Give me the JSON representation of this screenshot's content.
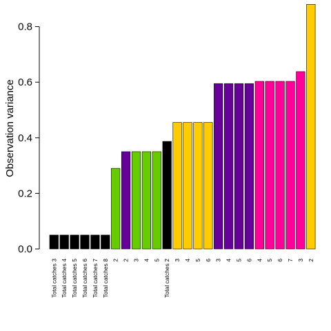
{
  "chart_data": {
    "type": "bar",
    "ylabel": "Observation variance",
    "xlabel": "",
    "title": "",
    "ylim": [
      0,
      0.88
    ],
    "yticks": [
      0.0,
      0.2,
      0.4,
      0.6,
      0.8
    ],
    "ytick_labels": [
      "0.0",
      "0.2",
      "0.4",
      "0.6",
      "0.8"
    ],
    "grid": false,
    "categories": [
      "Total catches 3",
      "Total catches 4",
      "Total catches 5",
      "Total catches 6",
      "Total catches 7",
      "Total catches 8",
      "2",
      "2",
      "3",
      "4",
      "5",
      "Total catches 2",
      "3",
      "4",
      "5",
      "6",
      "3",
      "4",
      "5",
      "6",
      "4",
      "5",
      "6",
      "7",
      "3",
      "2"
    ],
    "values": [
      0.05,
      0.05,
      0.05,
      0.05,
      0.05,
      0.05,
      0.29,
      0.35,
      0.35,
      0.35,
      0.35,
      0.387,
      0.455,
      0.455,
      0.455,
      0.455,
      0.595,
      0.595,
      0.595,
      0.595,
      0.603,
      0.603,
      0.603,
      0.603,
      0.638,
      0.88
    ],
    "colors": [
      "#000000",
      "#000000",
      "#000000",
      "#000000",
      "#000000",
      "#000000",
      "#66cc00",
      "#660099",
      "#66cc00",
      "#66cc00",
      "#66cc00",
      "#000000",
      "#ffcc00",
      "#ffcc00",
      "#ffcc00",
      "#ffcc00",
      "#660099",
      "#660099",
      "#660099",
      "#660099",
      "#ff0099",
      "#ff0099",
      "#ff0099",
      "#ff0099",
      "#ff0099",
      "#ffcc00"
    ]
  }
}
